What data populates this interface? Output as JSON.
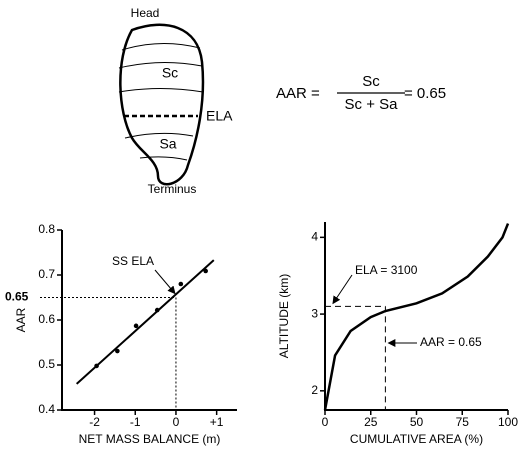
{
  "diagram": {
    "head": "Head",
    "accumulation": "Sc",
    "ela": "ELA",
    "ablation": "Sa",
    "terminus": "Terminus",
    "formula": {
      "left": "AAR =",
      "numerator": "Sc",
      "denominator": "Sc + Sa",
      "result": "= 0.65"
    }
  },
  "chart_data": [
    {
      "type": "scatter",
      "x_label": "NET MASS BALANCE (m)",
      "y_label": "AAR",
      "x": [
        -1.95,
        -1.44,
        -0.98,
        -0.46,
        0.12,
        0.73
      ],
      "values": [
        0.498,
        0.531,
        0.587,
        0.622,
        0.68,
        0.709
      ],
      "fit": {
        "x": [
          -2.44,
          0.93
        ],
        "y": [
          0.458,
          0.733
        ]
      },
      "xlim": [
        -2.8,
        1.5
      ],
      "ylim": [
        0.4,
        0.8
      ],
      "xticks": [
        -2,
        -1,
        0,
        {
          "value": 1,
          "label": "+1"
        }
      ],
      "yticks": [
        0.4,
        0.5,
        0.6,
        0.7,
        0.8
      ],
      "reference": {
        "x": 0,
        "y": 0.65
      },
      "annotation": "SS ELA",
      "color": "#000000"
    },
    {
      "type": "line",
      "x_label": "CUMULATIVE  AREA (%)",
      "y_label": "ALTITUDE (km)",
      "x": [
        0,
        5.5,
        14,
        25,
        33,
        50,
        64,
        78,
        89,
        97,
        100
      ],
      "values": [
        1.75,
        2.46,
        2.78,
        2.96,
        3.04,
        3.14,
        3.27,
        3.49,
        3.75,
        4.0,
        4.18
      ],
      "xlim": [
        0,
        100
      ],
      "ylim": [
        1.75,
        4.2
      ],
      "xticks": [
        0,
        25,
        50,
        75,
        100
      ],
      "yticks": [
        2,
        3,
        4
      ],
      "reference": {
        "x": 33,
        "y": 3.1
      },
      "annotations": [
        "ELA = 3100",
        "AAR = 0.65"
      ],
      "color": "#000000"
    }
  ]
}
